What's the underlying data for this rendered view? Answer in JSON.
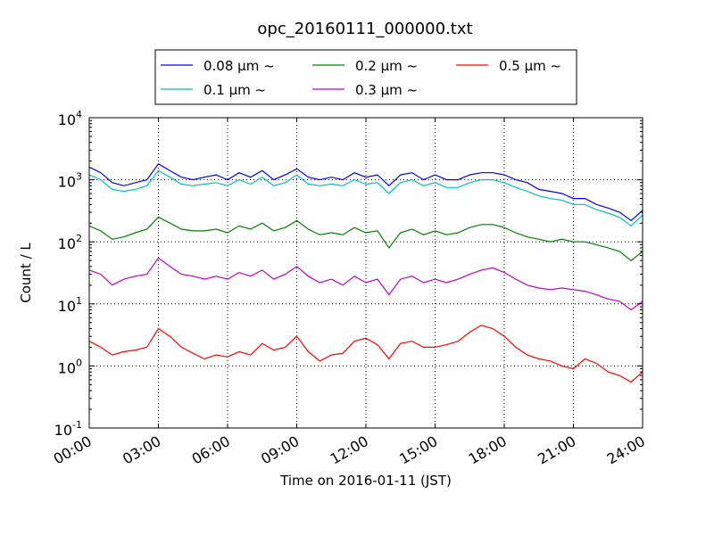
{
  "chart_data": {
    "type": "line",
    "title": "opc_20160111_000000.txt",
    "xlabel": "Time on 2016-01-11 (JST)",
    "ylabel": "Count / L",
    "x_unit": "hour",
    "xlim": [
      0,
      24
    ],
    "ylim": [
      0.1,
      10000
    ],
    "yscale": "log",
    "grid": true,
    "legend_position": "top-center, outside plot",
    "x_ticks": [
      {
        "value": 0,
        "label": "00:00"
      },
      {
        "value": 3,
        "label": "03:00"
      },
      {
        "value": 6,
        "label": "06:00"
      },
      {
        "value": 9,
        "label": "09:00"
      },
      {
        "value": 12,
        "label": "12:00"
      },
      {
        "value": 15,
        "label": "15:00"
      },
      {
        "value": 18,
        "label": "18:00"
      },
      {
        "value": 21,
        "label": "21:00"
      },
      {
        "value": 24,
        "label": "24:00"
      }
    ],
    "y_ticks": [
      {
        "value": 0.1,
        "base": "10",
        "exp": "-1"
      },
      {
        "value": 1,
        "base": "10",
        "exp": "0"
      },
      {
        "value": 10,
        "base": "10",
        "exp": "1"
      },
      {
        "value": 100,
        "base": "10",
        "exp": "2"
      },
      {
        "value": 1000,
        "base": "10",
        "exp": "3"
      },
      {
        "value": 10000,
        "base": "10",
        "exp": "4"
      }
    ],
    "x": [
      0,
      0.5,
      1,
      1.5,
      2,
      2.5,
      3,
      3.5,
      4,
      4.5,
      5,
      5.5,
      6,
      6.5,
      7,
      7.5,
      8,
      8.5,
      9,
      9.5,
      10,
      10.5,
      11,
      11.5,
      12,
      12.5,
      13,
      13.5,
      14,
      14.5,
      15,
      15.5,
      16,
      16.5,
      17,
      17.5,
      18,
      18.5,
      19,
      19.5,
      20,
      20.5,
      21,
      21.5,
      22,
      22.5,
      23,
      23.5,
      24
    ],
    "series": [
      {
        "name": "0.08 μm ~",
        "color": "#0000ff",
        "values": [
          1600,
          1300,
          900,
          800,
          900,
          1000,
          1800,
          1400,
          1100,
          1000,
          1100,
          1200,
          1000,
          1300,
          1100,
          1400,
          1000,
          1200,
          1500,
          1100,
          1000,
          1100,
          1000,
          1300,
          1100,
          1200,
          800,
          1200,
          1300,
          1000,
          1200,
          1000,
          1000,
          1200,
          1300,
          1300,
          1200,
          1000,
          900,
          700,
          650,
          600,
          500,
          500,
          400,
          350,
          300,
          220,
          320
        ]
      },
      {
        "name": "0.1 μm ~",
        "color": "#00bfbf",
        "values": [
          1200,
          1000,
          700,
          650,
          700,
          800,
          1400,
          1100,
          850,
          800,
          850,
          900,
          800,
          1000,
          850,
          1100,
          800,
          900,
          1200,
          850,
          800,
          850,
          800,
          1000,
          850,
          900,
          600,
          900,
          1000,
          800,
          900,
          750,
          750,
          900,
          1000,
          1000,
          900,
          750,
          650,
          550,
          500,
          470,
          400,
          400,
          330,
          290,
          250,
          180,
          270
        ]
      },
      {
        "name": "0.2 μm ~",
        "color": "#008000",
        "values": [
          180,
          150,
          110,
          120,
          140,
          160,
          250,
          200,
          160,
          150,
          150,
          160,
          140,
          180,
          160,
          200,
          150,
          170,
          220,
          160,
          130,
          140,
          130,
          170,
          140,
          150,
          80,
          140,
          160,
          130,
          150,
          130,
          140,
          170,
          190,
          190,
          170,
          140,
          120,
          110,
          100,
          110,
          100,
          100,
          90,
          80,
          70,
          50,
          70
        ]
      },
      {
        "name": "0.3 μm ~",
        "color": "#bf00bf",
        "values": [
          35,
          30,
          20,
          25,
          28,
          30,
          55,
          40,
          30,
          28,
          25,
          28,
          25,
          32,
          28,
          35,
          25,
          30,
          40,
          28,
          22,
          25,
          20,
          28,
          22,
          25,
          14,
          25,
          28,
          22,
          25,
          22,
          25,
          30,
          35,
          38,
          32,
          25,
          20,
          18,
          17,
          18,
          17,
          16,
          14,
          12,
          11,
          8,
          11
        ]
      },
      {
        "name": "0.5 μm ~",
        "color": "#ff0000",
        "values": [
          2.5,
          2,
          1.5,
          1.7,
          1.8,
          2,
          4,
          3,
          2,
          1.6,
          1.3,
          1.5,
          1.4,
          1.7,
          1.5,
          2.3,
          1.8,
          2,
          3,
          1.7,
          1.2,
          1.5,
          1.6,
          2.5,
          2.8,
          2.2,
          1.3,
          2.3,
          2.5,
          2,
          2,
          2.2,
          2.5,
          3.5,
          4.5,
          4,
          3,
          2,
          1.5,
          1.3,
          1.2,
          1,
          0.9,
          1.3,
          1.1,
          0.8,
          0.7,
          0.55,
          0.8
        ]
      }
    ]
  }
}
